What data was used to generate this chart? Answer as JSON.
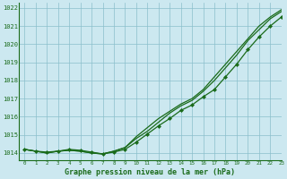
{
  "xlabel": "Graphe pression niveau de la mer (hPa)",
  "xlim": [
    -0.5,
    23
  ],
  "ylim": [
    1013.6,
    1022.3
  ],
  "yticks": [
    1014,
    1015,
    1016,
    1017,
    1018,
    1019,
    1020,
    1021,
    1022
  ],
  "xticks": [
    0,
    1,
    2,
    3,
    4,
    5,
    6,
    7,
    8,
    9,
    10,
    11,
    12,
    13,
    14,
    15,
    16,
    17,
    18,
    19,
    20,
    21,
    22,
    23
  ],
  "bg_color": "#cce8f0",
  "grid_color": "#8bbfcc",
  "line_color": "#1a6b1a",
  "line1": [
    1014.2,
    1014.1,
    1014.0,
    1014.1,
    1014.15,
    1014.1,
    1014.0,
    1013.95,
    1014.1,
    1014.3,
    1014.8,
    1015.2,
    1015.7,
    1016.2,
    1016.6,
    1016.9,
    1017.4,
    1018.0,
    1018.7,
    1019.4,
    1020.2,
    1020.8,
    1021.4,
    1021.8
  ],
  "line2": [
    1014.2,
    1014.1,
    1014.0,
    1014.1,
    1014.15,
    1014.1,
    1014.0,
    1013.95,
    1014.1,
    1014.3,
    1014.9,
    1015.4,
    1015.9,
    1016.3,
    1016.7,
    1017.0,
    1017.5,
    1018.2,
    1018.9,
    1019.6,
    1020.3,
    1021.0,
    1021.5,
    1021.9
  ],
  "line3": [
    1014.2,
    1014.1,
    1014.05,
    1014.1,
    1014.2,
    1014.15,
    1014.05,
    1013.95,
    1014.05,
    1014.2,
    1014.6,
    1015.05,
    1015.5,
    1015.9,
    1016.35,
    1016.65,
    1017.1,
    1017.5,
    1018.2,
    1018.9,
    1019.7,
    1020.4,
    1021.0,
    1021.5
  ]
}
